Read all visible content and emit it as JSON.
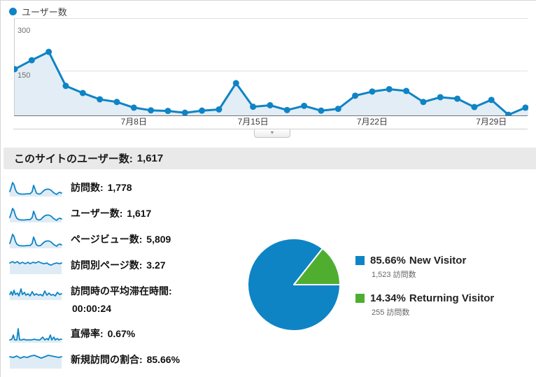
{
  "colors": {
    "blue": "#0e84c5",
    "green": "#4fae30",
    "area_fill": "#e2edf5",
    "grid": "#e0e0e0",
    "baseline": "#757575",
    "y_label": "#6f6f6f",
    "x_label": "#3a3a3a"
  },
  "legend": {
    "label": "ユーザー数"
  },
  "slider": {
    "icon": "▼"
  },
  "chart_data": [
    {
      "type": "line",
      "title": "ユーザー数",
      "xlabel": "",
      "ylabel": "",
      "ylim": [
        0,
        300
      ],
      "yticks": [
        150,
        300
      ],
      "grid": "horizontal",
      "legend_position": "top-left",
      "x_tick_labels": [
        "7月8日",
        "7月15日",
        "7月22日",
        "7月29日"
      ],
      "x_tick_day_index": [
        8,
        15,
        22,
        29
      ],
      "days": 31,
      "values": [
        155,
        185,
        213,
        99,
        75,
        54,
        45,
        26,
        17,
        15,
        9,
        16,
        20,
        108,
        29,
        34,
        18,
        32,
        16,
        22,
        66,
        80,
        88,
        82,
        45,
        61,
        56,
        28,
        52,
        2,
        26
      ],
      "clipped_next_value": 40
    },
    {
      "type": "pie",
      "slices": [
        {
          "label": "New Visitor",
          "percent": 85.66,
          "visits": 1523,
          "color": "#0e84c5"
        },
        {
          "label": "Returning Visitor",
          "percent": 14.34,
          "visits": 255,
          "color": "#4fae30"
        }
      ],
      "orientation_note": "small slice ends at 3 o'clock"
    }
  ],
  "summary": {
    "label": "このサイトのユーザー数:",
    "value": "1,617"
  },
  "metrics": [
    {
      "label": "訪問数:",
      "value": "1,778",
      "spark": "A"
    },
    {
      "label": "ユーザー数:",
      "value": "1,617",
      "spark": "A"
    },
    {
      "label": "ページビュー数:",
      "value": "5,809",
      "spark": "A"
    },
    {
      "label": "訪問別ページ数:",
      "value": "3.27",
      "spark": "B"
    },
    {
      "label": "訪問時の平均滞在時間:",
      "value": "00:00:24",
      "spark": "C"
    },
    {
      "label": "直帰率:",
      "value": "0.67%",
      "spark": "D"
    },
    {
      "label": "新規訪問の割合:",
      "value": "85.66%",
      "spark": "E"
    }
  ],
  "pie_legend": [
    {
      "percent": "85.66%",
      "name": "New Visitor",
      "sub": "1,523 訪問数"
    },
    {
      "percent": "14.34%",
      "name": "Returning Visitor",
      "sub": "255 訪問数"
    }
  ]
}
